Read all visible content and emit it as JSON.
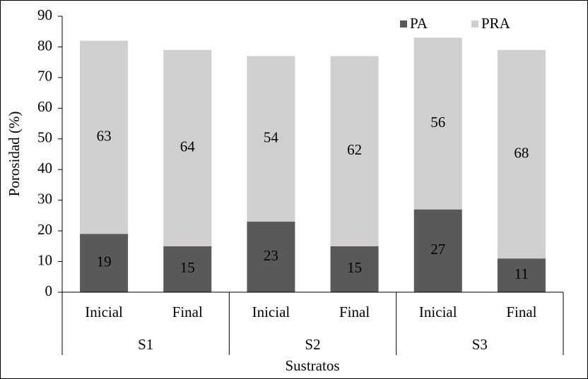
{
  "chart_data": {
    "type": "stacked-bar",
    "categories": [
      "Inicial",
      "Final",
      "Inicial",
      "Final",
      "Inicial",
      "Final"
    ],
    "groups": [
      "S1",
      "S2",
      "S3"
    ],
    "x_label": "Sustratos",
    "y_label": "Porosidad (%)",
    "series": [
      {
        "name": "PA",
        "color": "#595959",
        "values": [
          19,
          15,
          23,
          15,
          27,
          11
        ]
      },
      {
        "name": "PRA",
        "color": "#d0cece",
        "values": [
          63,
          64,
          54,
          62,
          56,
          68
        ]
      }
    ],
    "ylim": [
      0,
      90
    ],
    "yticks": [
      0,
      10,
      20,
      30,
      40,
      50,
      60,
      70,
      80,
      90
    ],
    "legend": "top-right"
  }
}
